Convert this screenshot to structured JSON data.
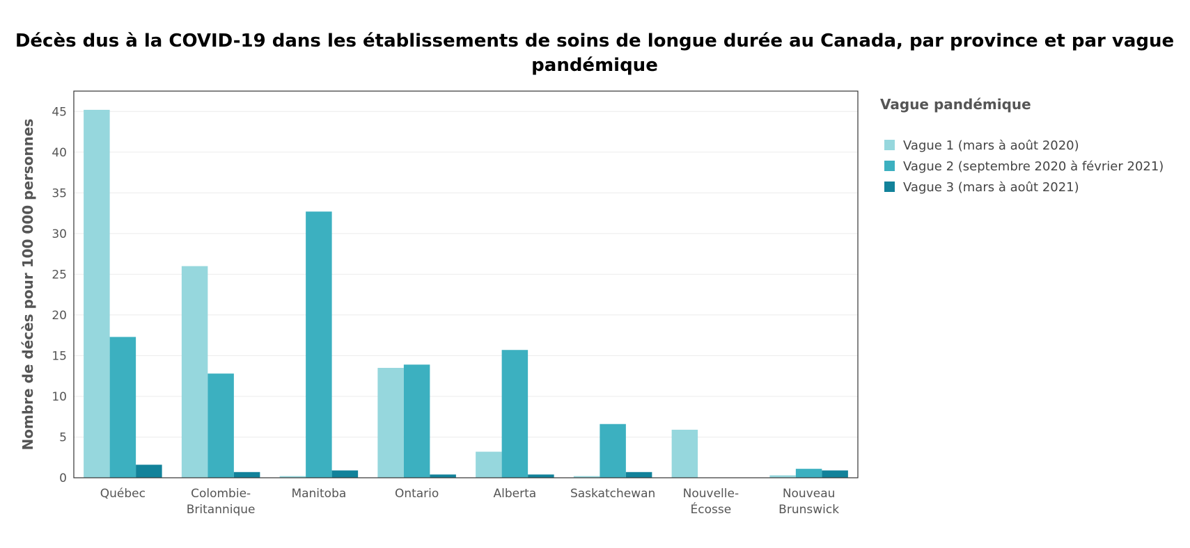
{
  "chart_data": {
    "type": "bar",
    "title": "Décès dus à la COVID-19 dans les établissements de soins de longue durée au Canada, par province et par vague pandémique",
    "title_lines": [
      "Décès dus à la COVID-19 dans les établissements de soins de longue durée au Canada, par province et par vague",
      "pandémique"
    ],
    "xlabel": "",
    "ylabel": "Nombre de décès pour 100 000 personnes",
    "ylim": [
      0,
      47.5
    ],
    "yticks": [
      0,
      5,
      10,
      15,
      20,
      25,
      30,
      35,
      40,
      45
    ],
    "grid": true,
    "legend_title": "Vague pandémique",
    "legend_position": "right",
    "categories": [
      [
        "Québec"
      ],
      [
        "Colombie-",
        "Britannique"
      ],
      [
        "Manitoba"
      ],
      [
        "Ontario"
      ],
      [
        "Alberta"
      ],
      [
        "Saskatchewan"
      ],
      [
        "Nouvelle-",
        "Écosse"
      ],
      [
        "Nouveau",
        "Brunswick"
      ]
    ],
    "series": [
      {
        "name": "Vague 1 (mars à août 2020)",
        "color": "#96d7dd",
        "values": [
          45.2,
          26.0,
          0.2,
          13.5,
          3.2,
          0.2,
          5.9,
          0.3
        ]
      },
      {
        "name": "Vague 2 (septembre 2020 à février 2021)",
        "color": "#3cb0c0",
        "values": [
          17.3,
          12.8,
          32.7,
          13.9,
          15.7,
          6.6,
          0.0,
          1.1
        ]
      },
      {
        "name": "Vague 3 (mars à août 2021)",
        "color": "#12829a",
        "values": [
          1.6,
          0.7,
          0.9,
          0.4,
          0.4,
          0.7,
          0.0,
          0.9
        ]
      }
    ]
  }
}
